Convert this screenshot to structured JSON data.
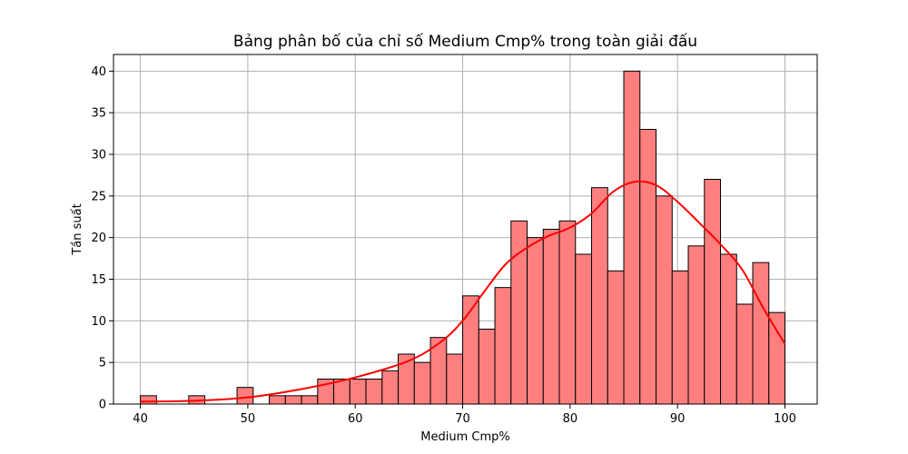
{
  "chart_data": {
    "type": "bar",
    "title": "Bảng phân bố của chỉ số Medium Cmp% trong toàn giải đấu",
    "xlabel": "Medium Cmp%",
    "ylabel": "Tần suất",
    "xlim": [
      37.5,
      103
    ],
    "ylim": [
      0,
      42
    ],
    "xticks": [
      40,
      50,
      60,
      70,
      80,
      90,
      100
    ],
    "yticks": [
      0,
      5,
      10,
      15,
      20,
      25,
      30,
      35,
      40
    ],
    "grid": true,
    "bar_color": "#ff7f7f",
    "bar_edge_color": "#000000",
    "kde_color": "#ff0000",
    "bin_edges": [
      40,
      41.5,
      43,
      44.5,
      46,
      47.5,
      49,
      50.5,
      52,
      53.5,
      55,
      56.5,
      58,
      59.5,
      61,
      62.5,
      64,
      65.5,
      67,
      68.5,
      70,
      71.5,
      73,
      74.5,
      76,
      77.5,
      79,
      80.5,
      82,
      83.5,
      85,
      86.5,
      88,
      89.5,
      91,
      92.5,
      94,
      95.5,
      97,
      98.5,
      100
    ],
    "values": [
      1,
      0,
      0,
      1,
      0,
      0,
      2,
      0,
      1,
      1,
      1,
      3,
      3,
      3,
      3,
      4,
      6,
      5,
      8,
      6,
      13,
      9,
      14,
      22,
      20,
      21,
      22,
      18,
      26,
      16,
      40,
      33,
      25,
      16,
      19,
      27,
      18,
      12,
      17,
      11
    ],
    "kde": {
      "x": [
        40,
        45,
        50,
        55,
        60,
        65,
        68,
        70,
        72,
        74,
        76,
        78,
        80,
        82,
        84,
        86,
        88,
        90,
        92,
        94,
        96,
        98,
        100
      ],
      "y": [
        0.3,
        0.4,
        0.8,
        1.8,
        3.2,
        5.2,
        7.5,
        10,
        13.5,
        16.8,
        18.8,
        20.2,
        21.2,
        22.9,
        25.5,
        26.7,
        26.3,
        24.3,
        21.8,
        19.2,
        16.2,
        11.5,
        7.2
      ]
    }
  }
}
